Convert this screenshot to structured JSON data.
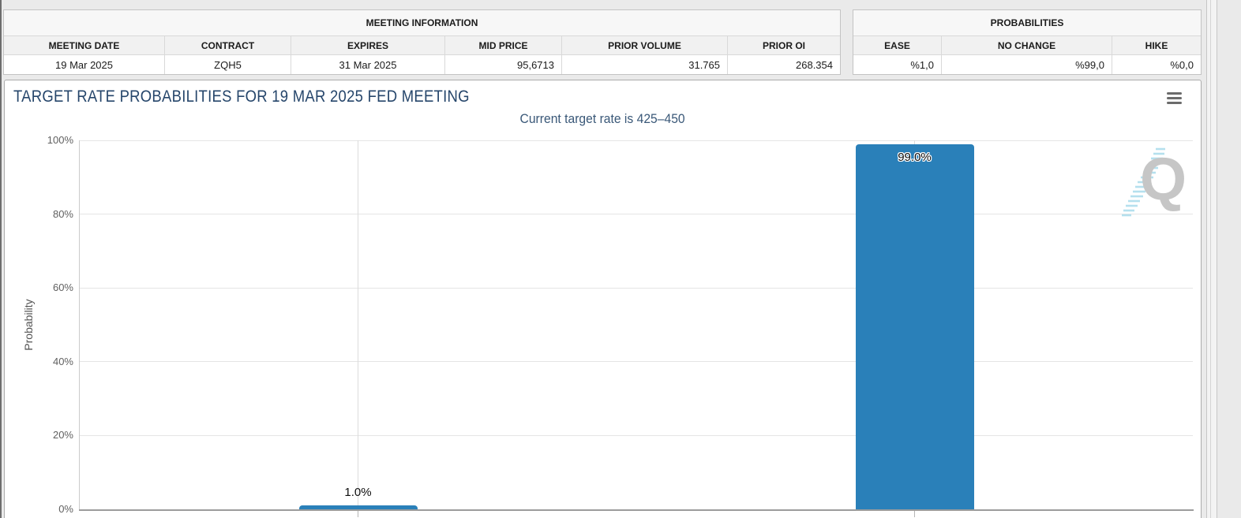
{
  "tables": {
    "meeting": {
      "title": "MEETING INFORMATION",
      "headers": [
        "MEETING DATE",
        "CONTRACT",
        "EXPIRES",
        "MID PRICE",
        "PRIOR VOLUME",
        "PRIOR OI"
      ],
      "values": [
        "19 Mar 2025",
        "ZQH5",
        "31 Mar 2025",
        "95,6713",
        "31.765",
        "268.354"
      ]
    },
    "probabilities": {
      "title": "PROBABILITIES",
      "headers": [
        "EASE",
        "NO CHANGE",
        "HIKE"
      ],
      "values": [
        "%1,0",
        "%99,0",
        "%0,0"
      ]
    }
  },
  "chart": {
    "menu_icon": "hamburger"
  },
  "colors": {
    "bar": "#2a80b9",
    "title": "#26466b",
    "subtitle": "#3a5878"
  },
  "chart_data": {
    "type": "bar",
    "title": "TARGET RATE PROBABILITIES FOR 19 MAR 2025 FED MEETING",
    "subtitle": "Current target rate is 425–450",
    "ylabel": "Probability",
    "ylim": [
      0,
      100
    ],
    "yticks": [
      0,
      20,
      40,
      60,
      80,
      100
    ],
    "ytick_labels": [
      "0%",
      "20%",
      "40%",
      "60%",
      "80%",
      "100%"
    ],
    "categories": [
      "",
      ""
    ],
    "values": [
      1.0,
      99.0
    ],
    "data_labels": [
      "1.0%",
      "99.0%"
    ],
    "bar_color": "#2a80b9",
    "grid": true,
    "legend": false,
    "watermark": "Q"
  }
}
